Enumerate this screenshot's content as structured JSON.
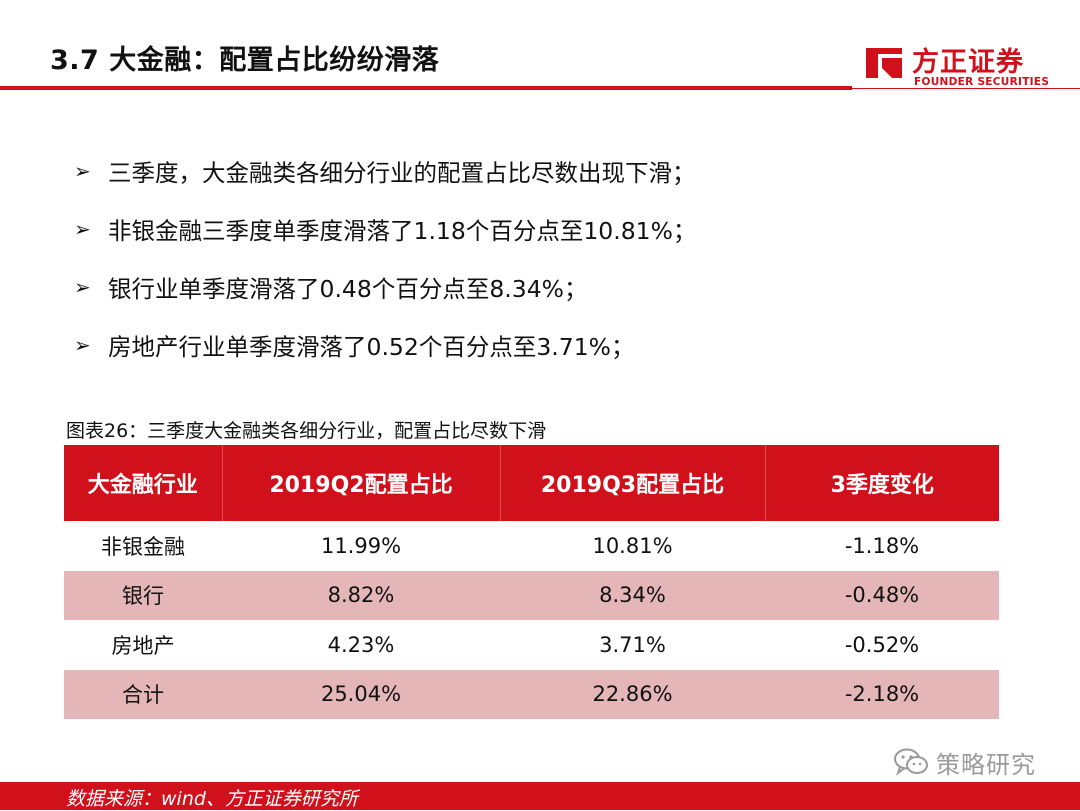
{
  "header": {
    "title": "3.7 大金融：配置占比纷纷滑落",
    "logo_cn": "方正证券",
    "logo_en": "FOUNDER SECURITIES",
    "accent_color": "#d0101a"
  },
  "bullets": [
    "三季度，大金融类各细分行业的配置占比尽数出现下滑；",
    "非银金融三季度单季度滑落了1.18个百分点至10.81%；",
    "银行业单季度滑落了0.48个百分点至8.34%；",
    "房地产行业单季度滑落了0.52个百分点至3.71%；"
  ],
  "bullet_icon": "arrow-right-icon",
  "table": {
    "caption": "图表26：三季度大金融类各细分行业，配置占比尽数下滑",
    "headers": [
      "大金融行业",
      "2019Q2配置占比",
      "2019Q3配置占比",
      "3季度变化"
    ],
    "rows": [
      [
        "非银金融",
        "11.99%",
        "10.81%",
        "-1.18%"
      ],
      [
        "银行",
        "8.82%",
        "8.34%",
        "-0.48%"
      ],
      [
        "房地产",
        "4.23%",
        "3.71%",
        "-0.52%"
      ],
      [
        "合计",
        "25.04%",
        "22.86%",
        "-2.18%"
      ]
    ],
    "header_color": "#d0101a",
    "alt_row_color": "#e4b6b8"
  },
  "watermark": {
    "text": "策略研究",
    "icon": "wechat-icon"
  },
  "footer": {
    "source": "数据来源：wind、方正证券研究所"
  }
}
